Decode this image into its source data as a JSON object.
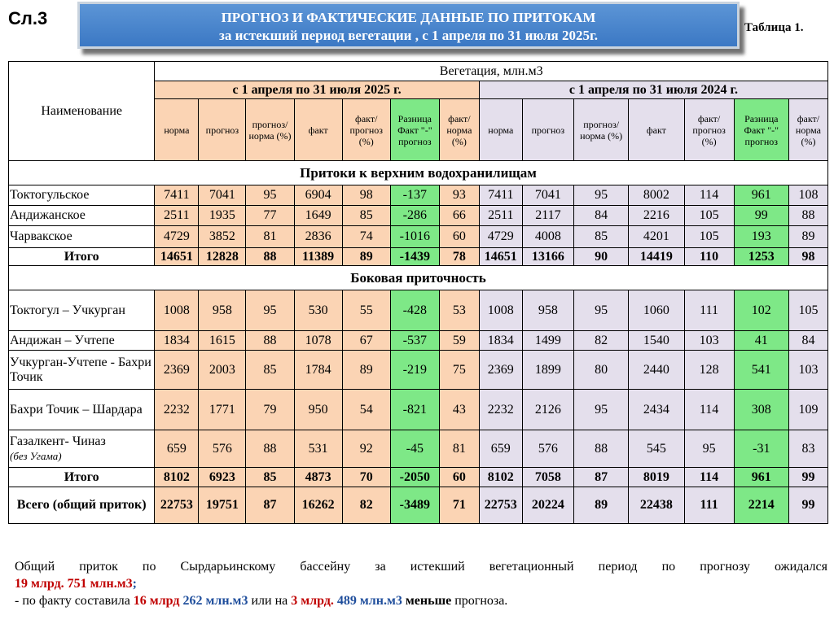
{
  "slide_number": "Сл.3",
  "banner": {
    "line1": "ПРОГНОЗ И ФАКТИЧЕСКИЕ ДАННЫЕ ПО ПРИТОКАМ",
    "line2": "за истекший период вегетации , с 1 апреля по 31 июля 2025г."
  },
  "table_label": "Таблица 1.",
  "header": {
    "name_col": "Наименование",
    "vegetation": "Вегетация, млн.м3",
    "period_2025": "с 1 апреля по 31 июля 2025 г.",
    "period_2024": "с 1 апреля по 31 июля 2024 г.",
    "cols": [
      "норма",
      "прогноз",
      "прогноз/ норма (%)",
      "факт",
      "факт/ прогноз (%)",
      "Разница Факт \"-\" прогноз",
      "факт/ норма (%)"
    ]
  },
  "sections": [
    {
      "title": "Притоки к верхним водохранилищам",
      "rows": [
        {
          "name": "Токтогульское",
          "v25": [
            "7411",
            "7041",
            "95",
            "6904",
            "98",
            "-137",
            "93"
          ],
          "v24": [
            "7411",
            "7041",
            "95",
            "8002",
            "114",
            "961",
            "108"
          ]
        },
        {
          "name": "Андижанское",
          "v25": [
            "2511",
            "1935",
            "77",
            "1649",
            "85",
            "-286",
            "66"
          ],
          "v24": [
            "2511",
            "2117",
            "84",
            "2216",
            "105",
            "99",
            "88"
          ]
        },
        {
          "name": "Чарвакское",
          "v25": [
            "4729",
            "3852",
            "81",
            "2836",
            "74",
            "-1016",
            "60"
          ],
          "v24": [
            "4729",
            "4008",
            "85",
            "4201",
            "105",
            "193",
            "89"
          ]
        }
      ],
      "total": {
        "name": "Итого",
        "v25": [
          "14651",
          "12828",
          "88",
          "11389",
          "89",
          "-1439",
          "78"
        ],
        "v24": [
          "14651",
          "13166",
          "90",
          "14419",
          "110",
          "1253",
          "98"
        ]
      }
    },
    {
      "title": "Боковая приточность",
      "rows": [
        {
          "name": "Токтогул – Учкурган",
          "v25": [
            "1008",
            "958",
            "95",
            "530",
            "55",
            "-428",
            "53"
          ],
          "v24": [
            "1008",
            "958",
            "95",
            "1060",
            "111",
            "102",
            "105"
          ]
        },
        {
          "name": "Андижан – Учтепе",
          "v25": [
            "1834",
            "1615",
            "88",
            "1078",
            "67",
            "-537",
            "59"
          ],
          "v24": [
            "1834",
            "1499",
            "82",
            "1540",
            "103",
            "41",
            "84"
          ]
        },
        {
          "name": "Учкурган-Учтепе - Бахри Точик",
          "v25": [
            "2369",
            "2003",
            "85",
            "1784",
            "89",
            "-219",
            "75"
          ],
          "v24": [
            "2369",
            "1899",
            "80",
            "2440",
            "128",
            "541",
            "103"
          ]
        },
        {
          "name": "Бахри Точик – Шардара",
          "v25": [
            "2232",
            "1771",
            "79",
            "950",
            "54",
            "-821",
            "43"
          ],
          "v24": [
            "2232",
            "2126",
            "95",
            "2434",
            "114",
            "308",
            "109"
          ]
        },
        {
          "name": "Газалкент- Чиназ",
          "sub": "(без Угама)",
          "v25": [
            "659",
            "576",
            "88",
            "531",
            "92",
            "-45",
            "81"
          ],
          "v24": [
            "659",
            "576",
            "88",
            "545",
            "95",
            "-31",
            "83"
          ]
        }
      ],
      "total": {
        "name": "Итого",
        "v25": [
          "8102",
          "6923",
          "85",
          "4873",
          "70",
          "-2050",
          "60"
        ],
        "v24": [
          "8102",
          "7058",
          "87",
          "8019",
          "114",
          "961",
          "99"
        ]
      }
    }
  ],
  "grand_total": {
    "name": "Всего (общий приток)",
    "v25": [
      "22753",
      "19751",
      "87",
      "16262",
      "82",
      "-3489",
      "71"
    ],
    "v24": [
      "22753",
      "20224",
      "89",
      "22438",
      "111",
      "2214",
      "99"
    ]
  },
  "note": {
    "line1": "Общий приток по Сырдарьинскому бассейну за истекший вегетационный период по прогнозу ожидался",
    "fc_bn": "19 млрд.",
    "fc_mn": "751 млн.м3",
    "line2_prefix": "- по факту составила",
    "fact_bn": "16 млрд",
    "fact_mn": "262 млн.м3",
    "or_on": "или на",
    "diff_bn": "3 млрд.",
    "diff_mn": "489 млн.м3",
    "less": "меньше",
    "suffix": "прогноза."
  }
}
